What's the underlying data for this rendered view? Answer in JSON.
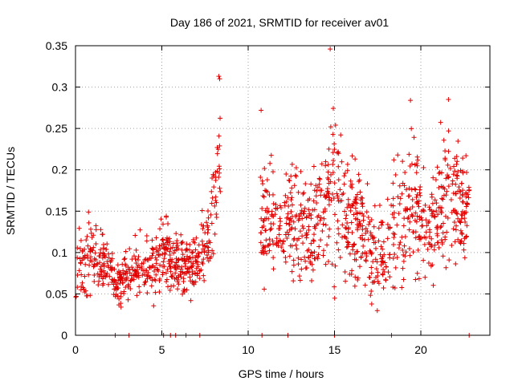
{
  "chart_data": {
    "type": "scatter",
    "title": "Day 186 of 2021, SRMTID for receiver av01",
    "xlabel": "GPS time / hours",
    "ylabel": "SRMTID / TECUs",
    "xlim": [
      0,
      24
    ],
    "ylim": [
      0,
      0.35
    ],
    "grid": true,
    "marker": "+",
    "color": "#e00000",
    "xticks": [
      0,
      5,
      10,
      15,
      20
    ],
    "xtick_labels": [
      "0",
      "5",
      "10",
      "15",
      "20"
    ],
    "yticks": [
      0,
      0.05,
      0.1,
      0.15,
      0.2,
      0.25,
      0.3,
      0.35
    ],
    "ytick_labels": [
      "0",
      "0.05",
      "0.1",
      "0.15",
      "0.2",
      "0.25",
      "0.3",
      "0.35"
    ],
    "series": [
      {
        "name": "SRMTID",
        "envelope": [
          [
            0.0,
            0.035,
            0.13
          ],
          [
            0.5,
            0.035,
            0.14
          ],
          [
            1.0,
            0.04,
            0.165
          ],
          [
            1.5,
            0.04,
            0.14
          ],
          [
            2.0,
            0.035,
            0.12
          ],
          [
            2.5,
            0.025,
            0.1
          ],
          [
            3.0,
            0.03,
            0.11
          ],
          [
            3.5,
            0.04,
            0.125
          ],
          [
            4.0,
            0.03,
            0.14
          ],
          [
            4.5,
            0.025,
            0.15
          ],
          [
            5.0,
            0.03,
            0.175
          ],
          [
            5.5,
            0.035,
            0.15
          ],
          [
            6.0,
            0.035,
            0.13
          ],
          [
            6.5,
            0.035,
            0.14
          ],
          [
            7.0,
            0.03,
            0.15
          ],
          [
            7.5,
            0.05,
            0.16
          ],
          [
            8.0,
            0.06,
            0.22
          ],
          [
            8.4,
            0.17,
            0.315
          ]
        ],
        "gap": [
          8.5,
          10.6
        ],
        "envelope_after_gap": [
          [
            10.7,
            0.045,
            0.22
          ],
          [
            11.5,
            0.05,
            0.23
          ],
          [
            12.5,
            0.05,
            0.22
          ],
          [
            13.5,
            0.05,
            0.21
          ],
          [
            14.5,
            0.04,
            0.27
          ],
          [
            14.8,
            0.04,
            0.345
          ],
          [
            15.5,
            0.04,
            0.25
          ],
          [
            16.5,
            0.04,
            0.23
          ],
          [
            17.5,
            0.015,
            0.16
          ],
          [
            18.5,
            0.03,
            0.23
          ],
          [
            19.5,
            0.04,
            0.285
          ],
          [
            20.5,
            0.04,
            0.22
          ],
          [
            21.5,
            0.05,
            0.285
          ],
          [
            22.8,
            0.08,
            0.22
          ]
        ],
        "outliers": [
          [
            14.75,
            0.346
          ],
          [
            19.4,
            0.284
          ],
          [
            21.6,
            0.285
          ],
          [
            10.75,
            0.272
          ],
          [
            8.3,
            0.313
          ],
          [
            8.35,
            0.31
          ]
        ],
        "zero_points": [
          2.3,
          3.1,
          5.1,
          5.5,
          5.8,
          6.4,
          7.2,
          10.8,
          12.3,
          15.0,
          18.3,
          22.8
        ],
        "approx_point_count": 1400
      }
    ]
  }
}
